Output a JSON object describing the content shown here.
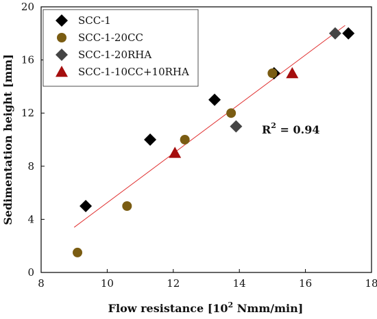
{
  "chart_data": {
    "type": "scatter",
    "title": "",
    "xlabel_main": "Flow resistance [10",
    "xlabel_sup": "2",
    "xlabel_tail": " Nmm/min]",
    "ylabel": "Sedimentation height [mm]",
    "xlim": [
      8,
      18
    ],
    "ylim": [
      0,
      20
    ],
    "xticks": [
      "8",
      "10",
      "12",
      "14",
      "16",
      "18"
    ],
    "yticks": [
      "0",
      "4",
      "8",
      "12",
      "16",
      "20"
    ],
    "grid": false,
    "legend_position": "top-left",
    "series": [
      {
        "name": "SCC-1",
        "marker": "diamond",
        "color": "#000000",
        "points": [
          [
            9.35,
            5.0
          ],
          [
            11.3,
            10.0
          ],
          [
            13.25,
            13.0
          ],
          [
            15.05,
            15.0
          ],
          [
            17.3,
            18.0
          ]
        ]
      },
      {
        "name": "SCC-1-20CC",
        "marker": "circle",
        "color": "#7a5c12",
        "points": [
          [
            9.1,
            1.5
          ],
          [
            10.6,
            5.0
          ],
          [
            12.35,
            10.0
          ],
          [
            13.75,
            12.0
          ],
          [
            15.0,
            15.0
          ]
        ]
      },
      {
        "name": "SCC-1-20RHA",
        "marker": "diamond",
        "color": "#444444",
        "points": [
          [
            13.9,
            11.0
          ],
          [
            16.9,
            18.0
          ]
        ]
      },
      {
        "name": "SCC-1-10CC+10RHA",
        "marker": "triangle",
        "color": "#a50e0e",
        "points": [
          [
            12.05,
            9.0
          ],
          [
            15.6,
            15.0
          ]
        ]
      }
    ],
    "trendline": {
      "color": "#e03030",
      "x": [
        9.0,
        17.2
      ],
      "y": [
        3.4,
        18.6
      ]
    },
    "annotation": {
      "text_main": "R",
      "text_sup": "2",
      "text_tail": " = 0.94"
    }
  }
}
